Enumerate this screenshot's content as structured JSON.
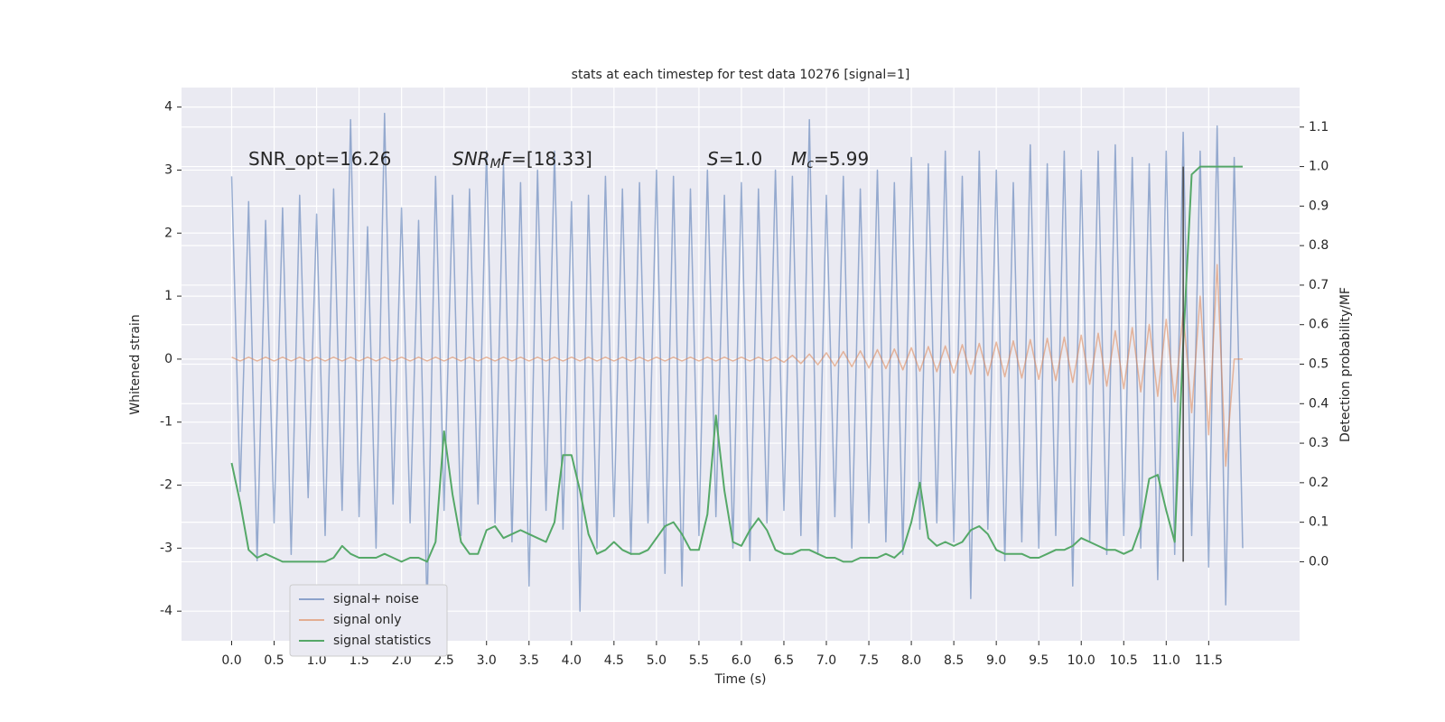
{
  "chart_data": {
    "type": "line",
    "title": "stats at each timestep for test data 10276 [signal=1]",
    "xlabel": "Time (s)",
    "ylabel": "Whitened strain",
    "y2label": "Detection probability/MF",
    "xlim": [
      -0.59,
      12.57
    ],
    "ylim": [
      -4.47,
      4.31
    ],
    "y2lim": [
      -0.2,
      1.2
    ],
    "xticks": [
      {
        "value": 0,
        "label": "0.0"
      },
      0.5,
      {
        "value": 1,
        "label": "1.0"
      },
      1.5,
      {
        "value": 2,
        "label": "2.0"
      },
      2.5,
      {
        "value": 3,
        "label": "3.0"
      },
      3.5,
      {
        "value": 4,
        "label": "4.0"
      },
      4.5,
      {
        "value": 5,
        "label": "5.0"
      },
      5.5,
      {
        "value": 6,
        "label": "6.0"
      },
      6.5,
      {
        "value": 7,
        "label": "7.0"
      },
      7.5,
      {
        "value": 8,
        "label": "8.0"
      },
      8.5,
      {
        "value": 9,
        "label": "9.0"
      },
      9.5,
      {
        "value": 10,
        "label": "10.0"
      },
      10.5,
      {
        "value": 11,
        "label": "11.0"
      },
      11.5
    ],
    "yticks": [
      -4,
      -3,
      -2,
      -1,
      0,
      1,
      2,
      3,
      4
    ],
    "y2ticks": [
      {
        "value": 0,
        "label": "0.0"
      },
      0.1,
      0.2,
      0.3,
      0.4,
      0.5,
      0.6,
      0.7,
      0.8,
      0.9,
      {
        "value": 1,
        "label": "1.0"
      },
      1.1
    ],
    "grid": true,
    "legend": "lower left",
    "annotations": [
      [
        {
          "text": "SNR_opt=16.26",
          "style": "plain"
        }
      ],
      [
        {
          "text": "SNR",
          "style": "italic"
        },
        {
          "text": "M",
          "style": "sub"
        },
        {
          "text": "F",
          "style": "italic"
        },
        {
          "text": "=[18.33]",
          "style": "plain"
        }
      ],
      [
        {
          "text": "S",
          "style": "italic"
        },
        {
          "text": "=1.0",
          "style": "plain"
        }
      ],
      [
        {
          "text": "M",
          "style": "italic"
        },
        {
          "text": "c",
          "style": "sub"
        },
        {
          "text": "=5.99",
          "style": "plain"
        }
      ]
    ],
    "vline": {
      "x": 11.2,
      "y2": [
        0,
        1.0
      ],
      "color": "#444444"
    },
    "x": [
      0,
      0.1,
      0.2,
      0.3,
      0.4,
      0.5,
      0.6,
      0.7,
      0.8,
      0.9,
      1,
      1.1,
      1.2,
      1.3,
      1.4,
      1.5,
      1.6,
      1.7,
      1.8,
      1.9,
      2,
      2.1,
      2.2,
      2.3,
      2.4,
      2.5,
      2.6,
      2.7,
      2.8,
      2.9,
      3,
      3.1,
      3.2,
      3.3,
      3.4,
      3.5,
      3.6,
      3.7,
      3.8,
      3.9,
      4,
      4.1,
      4.2,
      4.3,
      4.4,
      4.5,
      4.6,
      4.7,
      4.8,
      4.9,
      5,
      5.1,
      5.2,
      5.3,
      5.4,
      5.5,
      5.6,
      5.7,
      5.8,
      5.9,
      6,
      6.1,
      6.2,
      6.3,
      6.4,
      6.5,
      6.6,
      6.7,
      6.8,
      6.9,
      7,
      7.1,
      7.2,
      7.3,
      7.4,
      7.5,
      7.6,
      7.7,
      7.8,
      7.9,
      8,
      8.1,
      8.2,
      8.3,
      8.4,
      8.5,
      8.6,
      8.7,
      8.8,
      8.9,
      9,
      9.1,
      9.2,
      9.3,
      9.4,
      9.5,
      9.6,
      9.7,
      9.8,
      9.9,
      10,
      10.1,
      10.2,
      10.3,
      10.4,
      10.5,
      10.6,
      10.7,
      10.8,
      10.9,
      11,
      11.1,
      11.2,
      11.3,
      11.4,
      11.5,
      11.6,
      11.7,
      11.8,
      11.9
    ],
    "series": [
      {
        "name": "signal+ noise",
        "color": "#4c72b0",
        "values": [
          2.9,
          -2.1,
          2.5,
          -3.2,
          2.2,
          -2.6,
          2.4,
          -3.1,
          2.6,
          -2.2,
          2.3,
          -2.8,
          2.7,
          -2.4,
          3.8,
          -2.5,
          2.1,
          -3.0,
          3.9,
          -2.3,
          2.4,
          -2.6,
          2.2,
          -4.0,
          2.9,
          -2.4,
          2.6,
          -2.8,
          2.7,
          -2.3,
          3.3,
          -2.6,
          3.1,
          -2.9,
          2.8,
          -3.6,
          3.0,
          -2.4,
          3.3,
          -2.7,
          2.5,
          -4.0,
          2.6,
          -3.0,
          2.9,
          -2.5,
          2.7,
          -3.1,
          2.8,
          -2.6,
          3.0,
          -3.4,
          2.9,
          -3.6,
          2.7,
          -2.8,
          3.0,
          -2.5,
          2.6,
          -3.0,
          2.8,
          -3.2,
          2.7,
          -2.6,
          3.0,
          -2.4,
          2.9,
          -2.8,
          3.8,
          -3.1,
          2.6,
          -2.5,
          2.9,
          -3.0,
          2.7,
          -2.6,
          3.0,
          -2.9,
          2.8,
          -3.1,
          3.2,
          -2.7,
          3.1,
          -2.6,
          3.3,
          -2.9,
          2.9,
          -3.8,
          3.3,
          -2.7,
          3.0,
          -3.2,
          2.8,
          -2.9,
          3.4,
          -3.0,
          3.1,
          -2.8,
          3.3,
          -3.6,
          3.0,
          -2.9,
          3.3,
          -3.1,
          3.4,
          -2.8,
          3.2,
          -3.0,
          3.1,
          -3.5,
          3.3,
          -3.1,
          3.6,
          -2.8,
          3.3,
          -3.3,
          3.7,
          -3.9,
          3.2,
          -3.0
        ]
      },
      {
        "name": "signal only",
        "color": "#dd8452",
        "values": [
          0.03,
          -0.03,
          0.03,
          -0.03,
          0.03,
          -0.03,
          0.03,
          -0.03,
          0.03,
          -0.03,
          0.03,
          -0.03,
          0.03,
          -0.03,
          0.03,
          -0.03,
          0.03,
          -0.03,
          0.03,
          -0.03,
          0.03,
          -0.03,
          0.03,
          -0.03,
          0.03,
          -0.03,
          0.03,
          -0.03,
          0.03,
          -0.03,
          0.03,
          -0.03,
          0.03,
          -0.03,
          0.03,
          -0.03,
          0.03,
          -0.03,
          0.03,
          -0.03,
          0.03,
          -0.03,
          0.03,
          -0.03,
          0.03,
          -0.03,
          0.03,
          -0.03,
          0.03,
          -0.03,
          0.03,
          -0.03,
          0.03,
          -0.03,
          0.03,
          -0.03,
          0.03,
          -0.03,
          0.03,
          -0.03,
          0.03,
          -0.03,
          0.03,
          -0.03,
          0.03,
          -0.05,
          0.06,
          -0.07,
          0.08,
          -0.09,
          0.1,
          -0.11,
          0.12,
          -0.12,
          0.13,
          -0.14,
          0.15,
          -0.15,
          0.16,
          -0.17,
          0.18,
          -0.19,
          0.2,
          -0.2,
          0.21,
          -0.22,
          0.23,
          -0.24,
          0.25,
          -0.26,
          0.27,
          -0.28,
          0.29,
          -0.3,
          0.31,
          -0.32,
          0.33,
          -0.34,
          0.35,
          -0.37,
          0.38,
          -0.4,
          0.41,
          -0.43,
          0.45,
          -0.47,
          0.5,
          -0.52,
          0.55,
          -0.59,
          0.63,
          -0.68,
          0.75,
          -0.85,
          1.0,
          -1.2,
          1.5,
          -1.7,
          0.0,
          0.0
        ]
      },
      {
        "name": "signal statistics",
        "color": "#55a868",
        "axis": "y2",
        "values": [
          0.25,
          0.15,
          0.03,
          0.01,
          0.02,
          0.01,
          0.0,
          0.0,
          0.0,
          0.0,
          0.0,
          0.0,
          0.01,
          0.04,
          0.02,
          0.01,
          0.01,
          0.01,
          0.02,
          0.01,
          0.0,
          0.01,
          0.01,
          0.0,
          0.05,
          0.33,
          0.17,
          0.05,
          0.02,
          0.02,
          0.08,
          0.09,
          0.06,
          0.07,
          0.08,
          0.07,
          0.06,
          0.05,
          0.1,
          0.27,
          0.27,
          0.18,
          0.07,
          0.02,
          0.03,
          0.05,
          0.03,
          0.02,
          0.02,
          0.03,
          0.06,
          0.09,
          0.1,
          0.07,
          0.03,
          0.03,
          0.12,
          0.37,
          0.18,
          0.05,
          0.04,
          0.08,
          0.11,
          0.08,
          0.03,
          0.02,
          0.02,
          0.03,
          0.03,
          0.02,
          0.01,
          0.01,
          0.0,
          0.0,
          0.01,
          0.01,
          0.01,
          0.02,
          0.01,
          0.03,
          0.1,
          0.2,
          0.06,
          0.04,
          0.05,
          0.04,
          0.05,
          0.08,
          0.09,
          0.07,
          0.03,
          0.02,
          0.02,
          0.02,
          0.01,
          0.01,
          0.02,
          0.03,
          0.03,
          0.04,
          0.06,
          0.05,
          0.04,
          0.03,
          0.03,
          0.02,
          0.03,
          0.09,
          0.21,
          0.22,
          0.13,
          0.05,
          0.55,
          0.98,
          1.0,
          1.0,
          1.0,
          1.0,
          1.0,
          1.0
        ]
      }
    ]
  }
}
